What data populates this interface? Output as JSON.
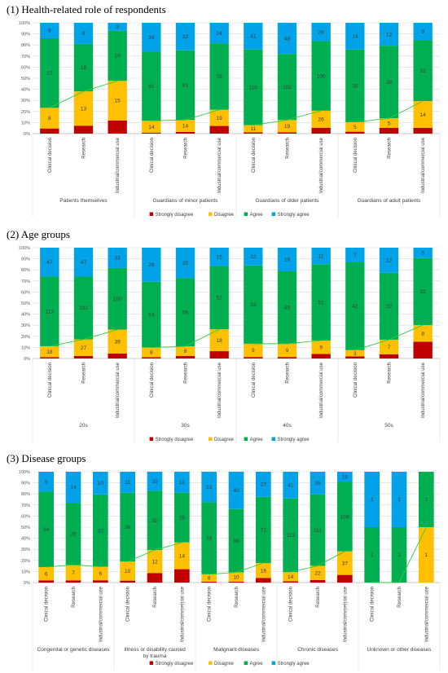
{
  "legend": [
    {
      "key": "sd",
      "label": "Strongly disagree",
      "color": "#c00000"
    },
    {
      "key": "d",
      "label": "Disagree",
      "color": "#ffc000"
    },
    {
      "key": "a",
      "label": "Agree",
      "color": "#00b050"
    },
    {
      "key": "sa",
      "label": "Strongly agree",
      "color": "#00a2e8"
    }
  ],
  "line_color": "#2ecc40",
  "chart_data": [
    {
      "type": "bar",
      "title": "(1) Health-related role of respondents",
      "y_ticks": [
        "0%",
        "10%",
        "20%",
        "30%",
        "40%",
        "50%",
        "60%",
        "70%",
        "80%",
        "90%",
        "100%"
      ],
      "categories": [
        "Clinical decision",
        "Research",
        "Industrial/commercial use"
      ],
      "groups": [
        {
          "name": "Patients themselves",
          "bars": [
            {
              "sd": 2,
              "d": 8,
              "a": 27,
              "sa": 6,
              "labels": {
                "d": "8",
                "a": "27",
                "sa": "6"
              }
            },
            {
              "sd": 3,
              "d": 13,
              "a": 18,
              "sa": 8,
              "labels": {
                "d": "13",
                "a": "18",
                "sa": "8"
              }
            },
            {
              "sd": 5,
              "d": 15,
              "a": 19,
              "sa": 3,
              "labels": {
                "d": "15",
                "a": "19",
                "sa": "3"
              }
            }
          ]
        },
        {
          "name": "Guardians of minor patients",
          "bars": [
            {
              "sd": 1,
              "d": 14,
              "a": 81,
              "sa": 34,
              "labels": {
                "d": "14",
                "a": "81",
                "sa": "34"
              }
            },
            {
              "sd": 2,
              "d": 14,
              "a": 81,
              "sa": 32,
              "labels": {
                "d": "14",
                "a": "81",
                "sa": "32"
              }
            },
            {
              "sd": 9,
              "d": 19,
              "a": 78,
              "sa": 24,
              "labels": {
                "d": "19",
                "a": "78",
                "sa": "24"
              }
            }
          ]
        },
        {
          "name": "Guardians of older patients",
          "bars": [
            {
              "sd": 2,
              "d": 11,
              "a": 116,
              "sa": 41,
              "labels": {
                "d": "11",
                "a": "116",
                "sa": "41"
              }
            },
            {
              "sd": 2,
              "d": 19,
              "a": 102,
              "sa": 48,
              "labels": {
                "d": "19",
                "a": "102",
                "sa": "48"
              }
            },
            {
              "sd": 9,
              "d": 26,
              "a": 106,
              "sa": 28,
              "labels": {
                "d": "26",
                "a": "106",
                "sa": "28"
              }
            }
          ]
        },
        {
          "name": "Guardians of adult patients",
          "bars": [
            {
              "sd": 1,
              "d": 5,
              "a": 38,
              "sa": 14,
              "labels": {
                "d": "5",
                "a": "38",
                "sa": "14"
              }
            },
            {
              "sd": 3,
              "d": 5,
              "a": 38,
              "sa": 12,
              "labels": {
                "d": "5",
                "a": "38",
                "sa": "12"
              }
            },
            {
              "sd": 3,
              "d": 14,
              "a": 32,
              "sa": 9,
              "labels": {
                "d": "14",
                "a": "32",
                "sa": "9"
              }
            }
          ]
        }
      ]
    },
    {
      "type": "bar",
      "title": "(2) Age groups",
      "y_ticks": [
        "0%",
        "10%",
        "20%",
        "30%",
        "40%",
        "50%",
        "60%",
        "70%",
        "80%",
        "90%",
        "100%"
      ],
      "categories": [
        "Clinical decision",
        "Research",
        "Industrial/commercial use"
      ],
      "groups": [
        {
          "name": "20s",
          "bars": [
            {
              "sd": 2,
              "d": 18,
              "a": 113,
              "sa": 47,
              "labels": {
                "d": "18",
                "a": "113",
                "sa": "47"
              }
            },
            {
              "sd": 4,
              "d": 27,
              "a": 102,
              "sa": 47,
              "labels": {
                "d": "27",
                "a": "102",
                "sa": "47"
              }
            },
            {
              "sd": 8,
              "d": 39,
              "a": 100,
              "sa": 33,
              "labels": {
                "d": "39",
                "a": "100",
                "sa": "33"
              }
            }
          ]
        },
        {
          "name": "30s",
          "bars": [
            {
              "sd": 1,
              "d": 8,
              "a": 54,
              "sa": 28,
              "labels": {
                "d": "8",
                "a": "54",
                "sa": "28"
              }
            },
            {
              "sd": 2,
              "d": 8,
              "a": 56,
              "sa": 25,
              "labels": {
                "d": "8",
                "a": "56",
                "sa": "25"
              }
            },
            {
              "sd": 6,
              "d": 18,
              "a": 52,
              "sa": 15,
              "labels": {
                "d": "18",
                "a": "52",
                "sa": "15"
              }
            }
          ]
        },
        {
          "name": "40s",
          "bars": [
            {
              "sd": 1,
              "d": 9,
              "a": 53,
              "sa": 12,
              "labels": {
                "d": "9",
                "a": "53",
                "sa": "12"
              }
            },
            {
              "sd": 1,
              "d": 9,
              "a": 49,
              "sa": 16,
              "labels": {
                "d": "9",
                "a": "49",
                "sa": "16"
              }
            },
            {
              "sd": 3,
              "d": 9,
              "a": 51,
              "sa": 11,
              "labels": {
                "d": "9",
                "a": "51",
                "sa": "11"
              }
            }
          ]
        },
        {
          "name": "50s",
          "bars": [
            {
              "sd": 1,
              "d": 3,
              "a": 42,
              "sa": 7,
              "labels": {
                "d": "3",
                "a": "42",
                "sa": "7"
              }
            },
            {
              "sd": 2,
              "d": 7,
              "a": 32,
              "sa": 12,
              "labels": {
                "d": "7",
                "a": "32",
                "sa": "12"
              }
            },
            {
              "sd": 8,
              "d": 8,
              "a": 32,
              "sa": 5,
              "labels": {
                "d": "8",
                "a": "32",
                "sa": "5"
              }
            }
          ]
        }
      ]
    },
    {
      "type": "bar",
      "title": "(3) Disease groups",
      "y_ticks": [
        "0%",
        "10%",
        "20%",
        "30%",
        "40%",
        "50%",
        "60%",
        "70%",
        "80%",
        "90%",
        "100%"
      ],
      "categories": [
        "Clinical decision",
        "Research",
        "Industrial/commercial use"
      ],
      "groups": [
        {
          "name": "Congenital or genetic diseases",
          "bars": [
            {
              "sd": 1,
              "d": 6,
              "a": 34,
              "sa": 9,
              "labels": {
                "d": "6",
                "a": "34",
                "sa": "9"
              }
            },
            {
              "sd": 1,
              "d": 7,
              "a": 28,
              "sa": 14,
              "labels": {
                "d": "7",
                "a": "28",
                "sa": "14"
              }
            },
            {
              "sd": 1,
              "d": 6,
              "a": 32,
              "sa": 10,
              "labels": {
                "d": "6",
                "a": "32",
                "sa": "10"
              }
            }
          ]
        },
        {
          "name": "Illness or disability caused by trauma",
          "bars": [
            {
              "sd": 1,
              "d": 10,
              "a": 36,
              "sa": 11,
              "labels": {
                "d": "10",
                "a": "36",
                "sa": "11"
              }
            },
            {
              "sd": 5,
              "d": 12,
              "a": 31,
              "sa": 10,
              "labels": {
                "d": "12",
                "a": "31",
                "sa": "10"
              }
            },
            {
              "sd": 7,
              "d": 14,
              "a": 26,
              "sa": 11,
              "labels": {
                "d": "14",
                "a": "26",
                "sa": "11"
              }
            }
          ]
        },
        {
          "name": "Malignant diseases",
          "bars": [
            {
              "sd": 1,
              "d": 8,
              "a": 78,
              "sa": 33,
              "labels": {
                "d": "8",
                "a": "78",
                "sa": "33"
              }
            },
            {
              "sd": 1,
              "d": 10,
              "a": 68,
              "sa": 40,
              "labels": {
                "d": "10",
                "a": "68",
                "sa": "40"
              }
            },
            {
              "sd": 5,
              "d": 16,
              "a": 71,
              "sa": 27,
              "labels": {
                "d": "16",
                "a": "71",
                "sa": "27"
              }
            }
          ]
        },
        {
          "name": "Chronic diseases",
          "bars": [
            {
              "sd": 2,
              "d": 14,
              "a": 113,
              "sa": 41,
              "labels": {
                "d": "14",
                "a": "113",
                "sa": "41"
              }
            },
            {
              "sd": 4,
              "d": 22,
              "a": 111,
              "sa": 35,
              "labels": {
                "d": "22",
                "a": "111",
                "sa": "35"
              }
            },
            {
              "sd": 12,
              "d": 37,
              "a": 109,
              "sa": 16,
              "labels": {
                "d": "37",
                "a": "109",
                "sa": "16"
              }
            }
          ]
        },
        {
          "name": "Unknown or other diseases",
          "bars": [
            {
              "sd": 0,
              "d": 0,
              "a": 1,
              "sa": 1,
              "labels": {
                "a": "1",
                "sa": "1"
              }
            },
            {
              "sd": 0,
              "d": 0,
              "a": 1,
              "sa": 1,
              "labels": {
                "a": "1",
                "sa": "1"
              }
            },
            {
              "sd": 0,
              "d": 1,
              "a": 1,
              "sa": 0,
              "labels": {
                "d": "1",
                "a": "1"
              }
            }
          ]
        }
      ]
    }
  ]
}
